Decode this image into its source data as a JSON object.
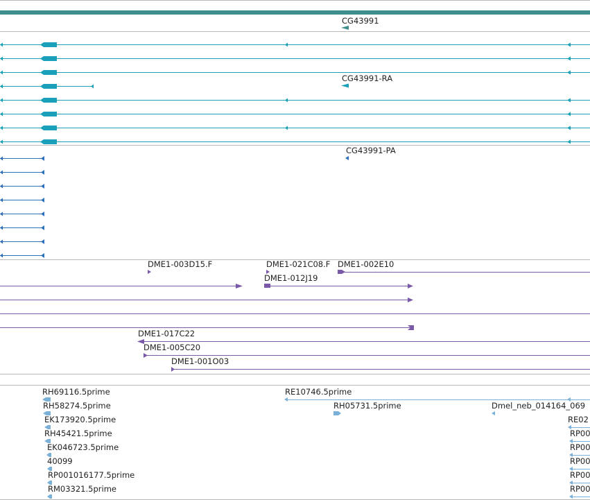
{
  "colors": {
    "top_bar": "#3f8f8f",
    "separator": "#b8b8b8",
    "gene": "#3f8f8f",
    "transcript": "#1aa0b8",
    "protein": "#2b6fb8",
    "clone": "#7a5aa8",
    "est": "#7bb0d8",
    "label": "#222222"
  },
  "genome_view": {
    "gene_track": {
      "label": "CG43991",
      "strand": "minus"
    },
    "transcript_track": {
      "label": "CG43991-RA",
      "row_count": 8
    },
    "protein_track": {
      "label": "CG43991-PA",
      "row_count": 8
    },
    "clone_track": {
      "labels": [
        "DME1-003D15.F",
        "DME1-021C08.F",
        "DME1-002E10",
        "DME1-012J19",
        "DME1-017C22",
        "DME1-005C20",
        "DME1-001O03"
      ]
    },
    "est_track": {
      "labels": [
        "RH69116.5prime",
        "RE10746.5prime",
        "RH58274.5prime",
        "RH05731.5prime",
        "Dmel_neb_014164_069",
        "EK173920.5prime",
        "RE02",
        "RH45421.5prime",
        "RP00",
        "EK046723.5prime",
        "RP00",
        "40099",
        "RP00",
        "RP001016177.5prime",
        "RP00",
        "RM03321.5prime",
        "RP00"
      ]
    }
  }
}
